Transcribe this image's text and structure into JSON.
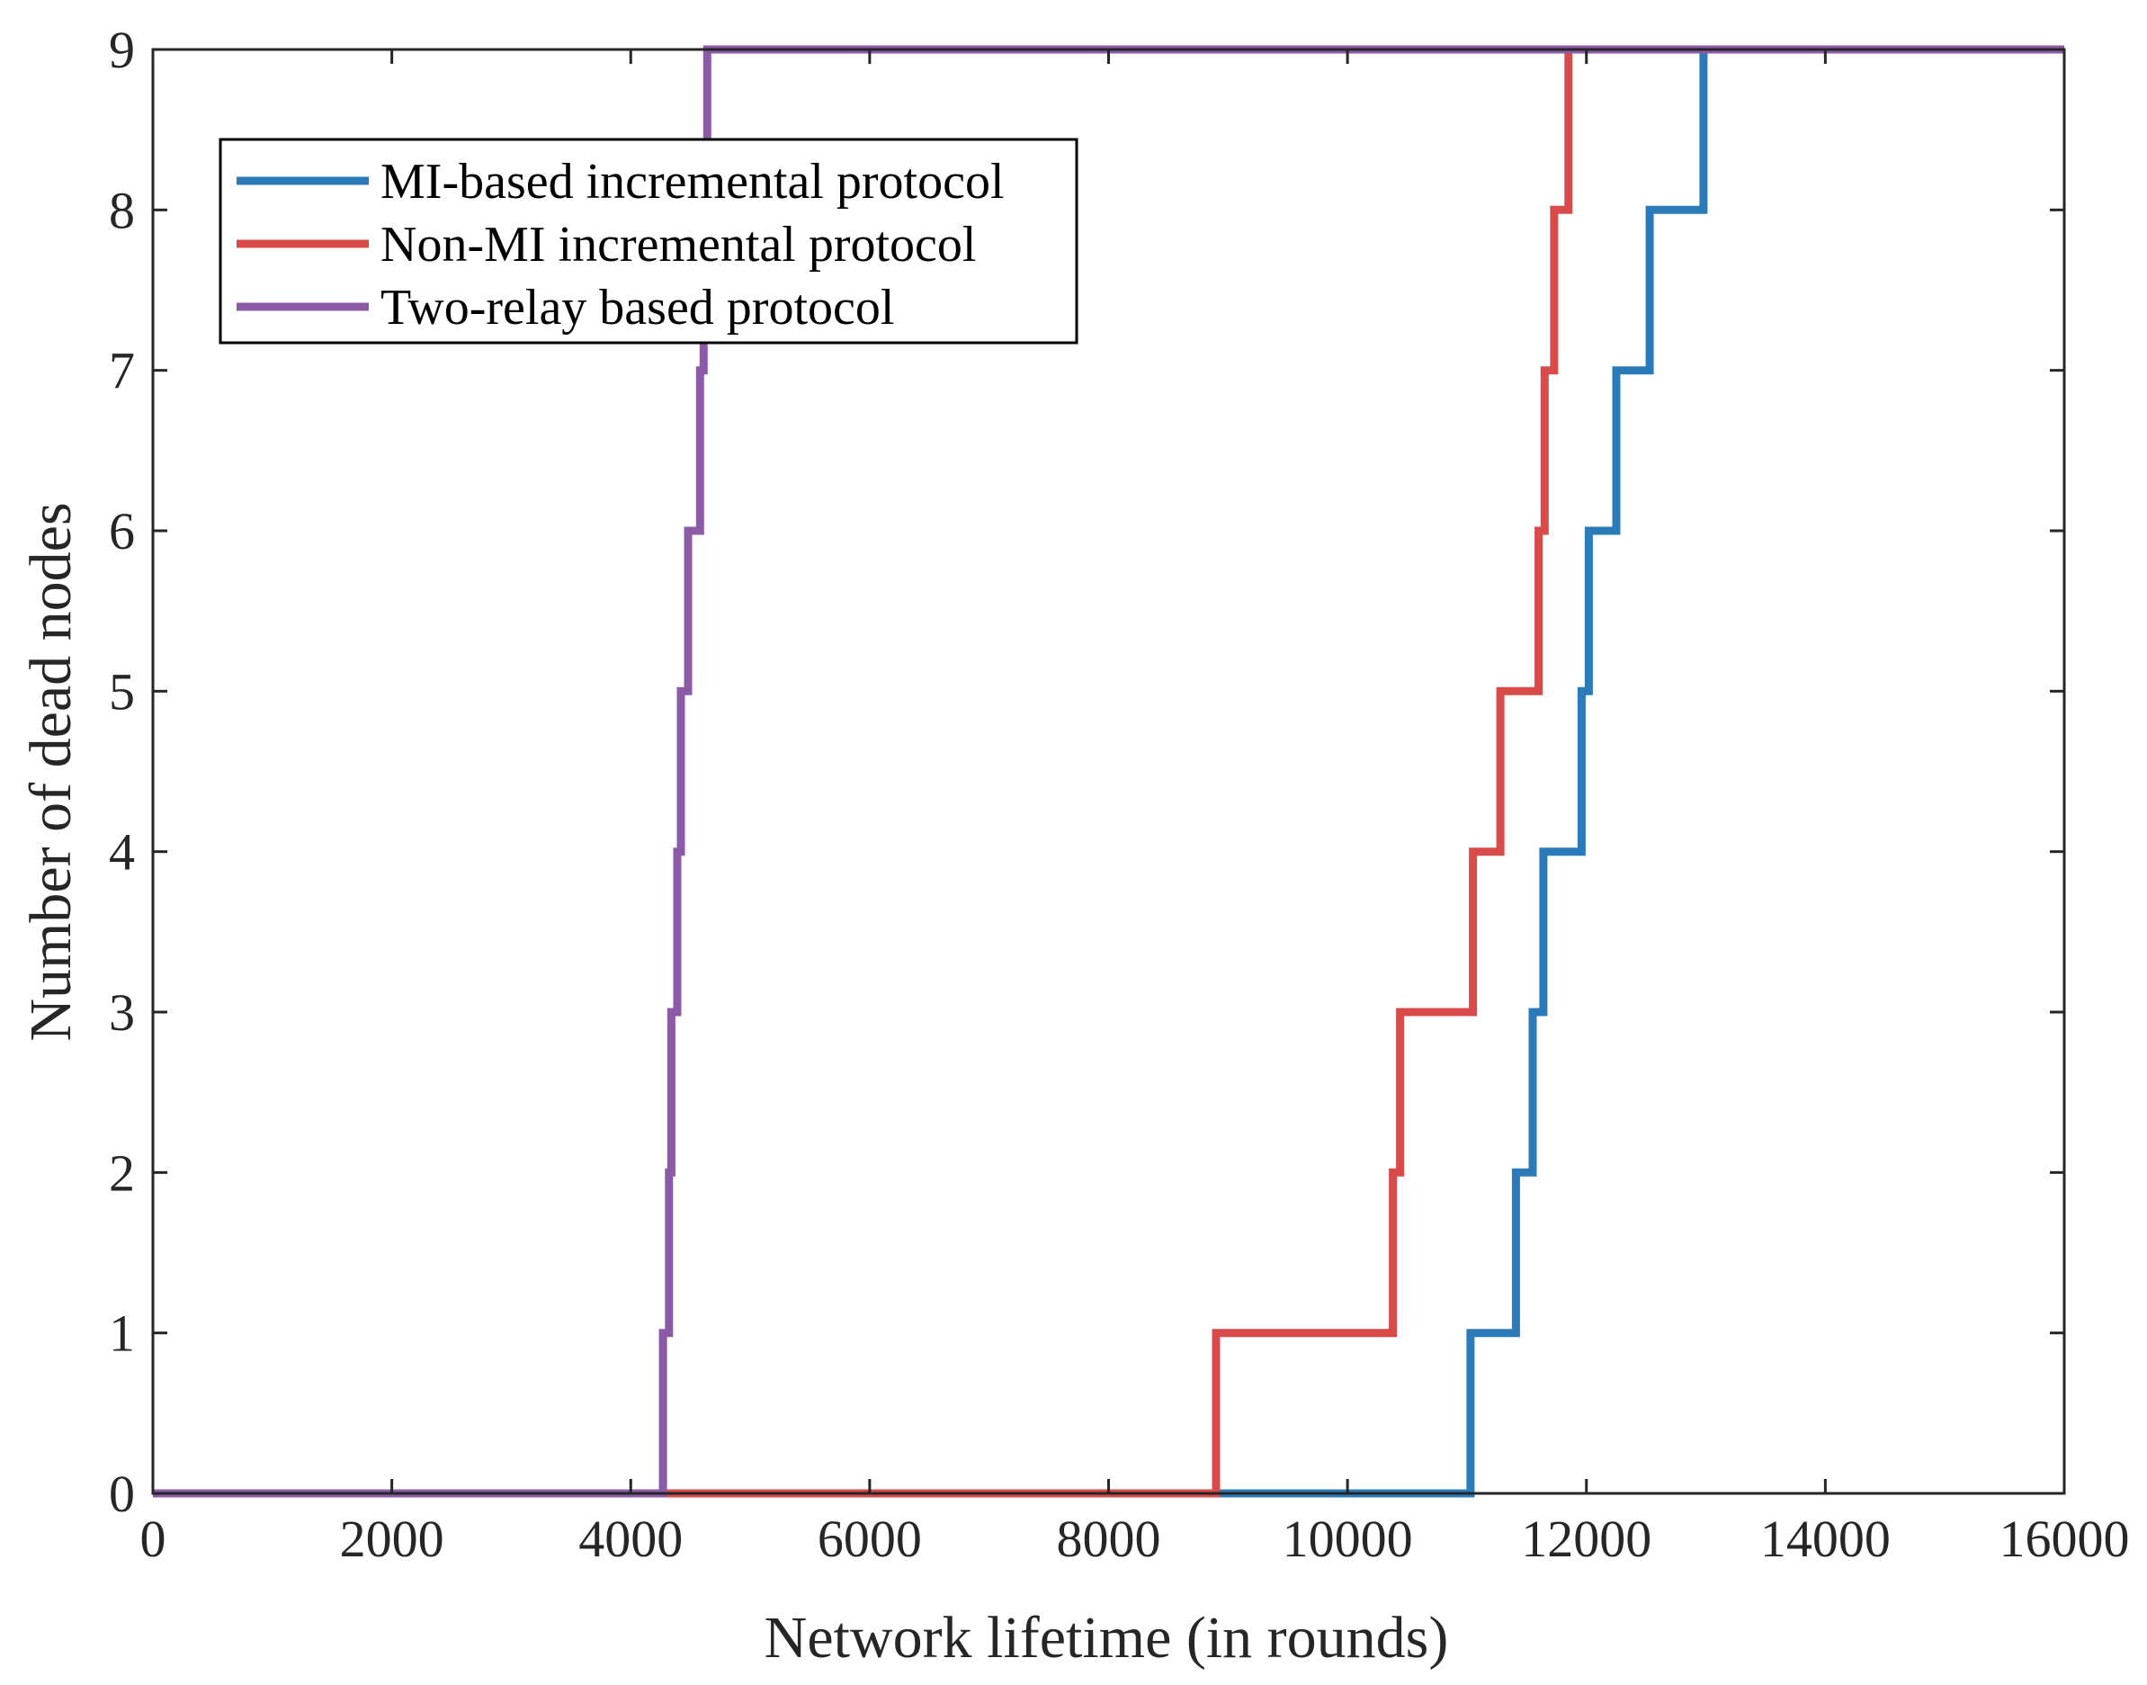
{
  "chart_data": {
    "type": "line",
    "step": true,
    "title": "",
    "xlabel": "Network lifetime (in rounds)",
    "ylabel": "Number of dead nodes",
    "xlim": [
      0,
      16000
    ],
    "ylim": [
      0,
      9
    ],
    "xticks": [
      0,
      2000,
      4000,
      6000,
      8000,
      10000,
      12000,
      14000,
      16000
    ],
    "yticks": [
      0,
      1,
      2,
      3,
      4,
      5,
      6,
      7,
      8,
      9
    ],
    "grid": false,
    "box": true,
    "legend_position": "top-left",
    "series": [
      {
        "name": "MI-based incremental protocol",
        "color": "#2b7bba",
        "change_x": [
          11030,
          11410,
          11550,
          11640,
          11960,
          12020,
          12250,
          12530,
          12980
        ],
        "x_end": 16000
      },
      {
        "name": "Non-MI incremental protocol",
        "color": "#d94a4a",
        "change_x": [
          8900,
          10380,
          10440,
          11050,
          11280,
          11600,
          11650,
          11730,
          11850
        ],
        "x_end": 16000
      },
      {
        "name": "Two-relay based protocol",
        "color": "#8c5ba7",
        "change_x": [
          4270,
          4320,
          4340,
          4390,
          4420,
          4480,
          4580,
          4610,
          4640
        ],
        "x_end": 16000
      }
    ]
  }
}
